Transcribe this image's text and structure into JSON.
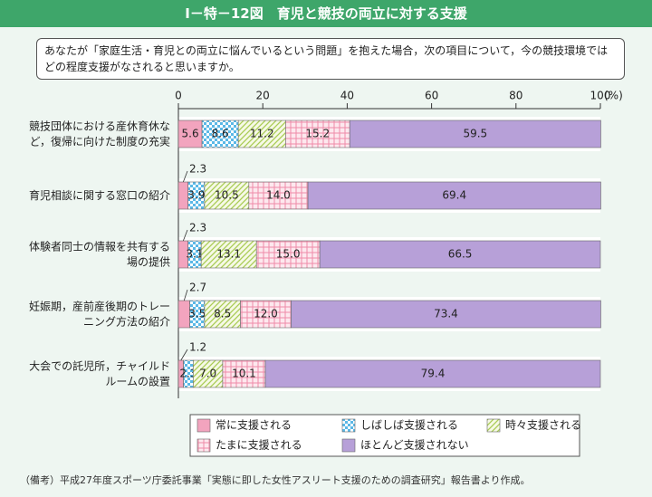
{
  "header": {
    "title": "Ⅰ－特－12図　育児と競技の両立に対する支援"
  },
  "question": "あなたが「家庭生活・育児との両立に悩んでいるという問題」を抱えた場合，次の項目について，今の競技環境ではどの程度支援がなされると思いますか。",
  "chart_data": {
    "type": "stacked-bar-horizontal",
    "categories": [
      "競技団体における産休育休な\nど，復帰に向けた制度の充実",
      "育児相談に関する窓口の紹介",
      "体験者同士の情報を共有する\n場の提供",
      "妊娠期，産前産後期のトレー\nニング方法の紹介",
      "大会での託児所，チャイルド\nルームの設置"
    ],
    "series": [
      {
        "name": "常に支援される",
        "color": "#f2a4be",
        "pattern": "none",
        "values": [
          5.6,
          2.3,
          2.3,
          2.7,
          1.2
        ]
      },
      {
        "name": "しばしば支援される",
        "color": "#5bb8e6",
        "pattern": "checker",
        "values": [
          8.6,
          3.9,
          3.1,
          3.5,
          2.3
        ]
      },
      {
        "name": "時々支援される",
        "color": "#a9cc55",
        "pattern": "diagonal",
        "values": [
          11.2,
          10.5,
          13.1,
          8.5,
          7.0
        ],
        "value_labels": [
          "11.2",
          "10.5",
          "13.1",
          "8.5",
          "7.0"
        ]
      },
      {
        "name": "たまに支援される",
        "color": "#ee8aa8",
        "pattern": "grid",
        "values": [
          15.2,
          14.0,
          15.0,
          12.0,
          10.1
        ],
        "value_labels": [
          "15.2",
          "14.0",
          "15.0",
          "12.0",
          "10.1"
        ]
      },
      {
        "name": "ほとんど支援されない",
        "color": "#b7a0d8",
        "pattern": "none",
        "values": [
          59.5,
          69.4,
          66.5,
          73.4,
          79.4
        ]
      }
    ],
    "xlim": [
      0,
      100
    ],
    "xticks": [
      0,
      20,
      40,
      60,
      80,
      100
    ],
    "x_unit": "(%)"
  },
  "note": "（備考）平成27年度スポーツ庁委託事業「実態に即した女性アスリート支援のための調査研究」報告書より作成。"
}
